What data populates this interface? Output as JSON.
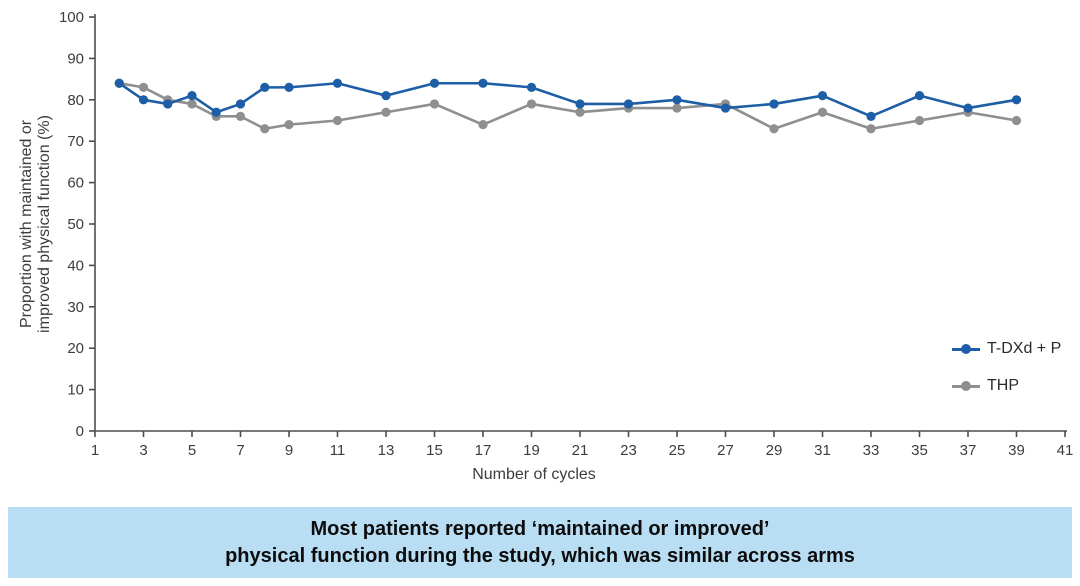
{
  "chart_data": {
    "type": "line",
    "title": "",
    "xlabel": "Number of cycles",
    "ylabel_lines": [
      "Proportion with maintained or",
      "improved physical function (%)"
    ],
    "xlim": [
      1,
      41
    ],
    "ylim": [
      0,
      100
    ],
    "x_ticks": [
      1,
      3,
      5,
      7,
      9,
      11,
      13,
      15,
      17,
      19,
      21,
      23,
      25,
      27,
      29,
      31,
      33,
      35,
      37,
      39,
      41
    ],
    "y_ticks": [
      0,
      10,
      20,
      30,
      40,
      50,
      60,
      70,
      80,
      90,
      100
    ],
    "grid": false,
    "legend_position": "right-middle",
    "x": [
      2,
      3,
      4,
      5,
      6,
      7,
      8,
      9,
      11,
      13,
      15,
      17,
      19,
      21,
      23,
      25,
      27,
      29,
      31,
      33,
      35,
      37,
      39
    ],
    "series": [
      {
        "name": "T-DXd + P",
        "color": "#1d5ea6",
        "values": [
          84,
          80,
          79,
          81,
          77,
          79,
          83,
          83,
          84,
          81,
          84,
          84,
          83,
          79,
          79,
          80,
          78,
          79,
          81,
          76,
          81,
          78,
          80
        ]
      },
      {
        "name": "THP",
        "color": "#8f8f8f",
        "values": [
          84,
          83,
          80,
          79,
          76,
          76,
          73,
          74,
          75,
          77,
          79,
          74,
          79,
          77,
          78,
          78,
          79,
          73,
          77,
          73,
          75,
          77,
          75
        ]
      }
    ]
  },
  "caption": {
    "line1": "Most patients reported ‘maintained or improved’",
    "line2": "physical function during the study, which was similar across arms",
    "background_color": "#b9ddf3"
  },
  "colors": {
    "axis": "#4d4d4d",
    "tick_text": "#3d3d3d",
    "caption_text": "#0c0c0c"
  }
}
